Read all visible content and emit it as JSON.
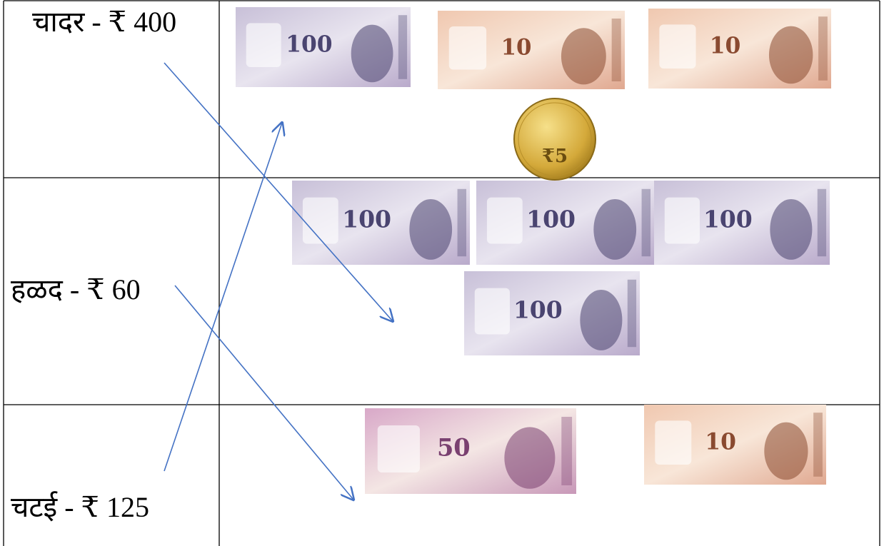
{
  "rows": [
    {
      "item": "चादर - ₹ 400",
      "money": [
        "100",
        "10",
        "10",
        "₹5"
      ]
    },
    {
      "item": "हळद -  ₹ 60",
      "money": [
        "100",
        "100",
        "100",
        "100"
      ]
    },
    {
      "item": "चटई - ₹ 125",
      "money": [
        "50",
        "10"
      ]
    }
  ]
}
